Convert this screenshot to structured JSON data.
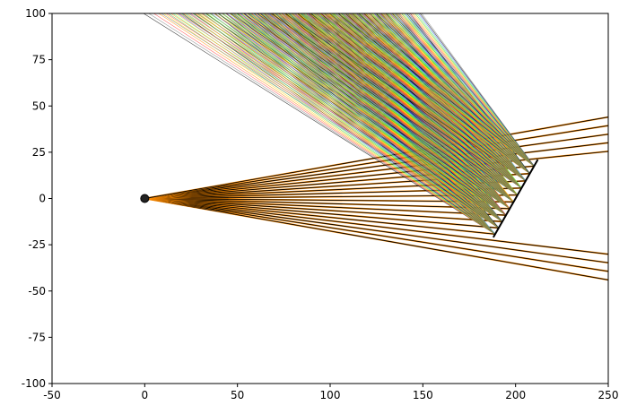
{
  "chart_data": {
    "type": "line",
    "title": "",
    "xlabel": "",
    "ylabel": "",
    "xlim": [
      -50,
      250
    ],
    "ylim": [
      -100,
      100
    ],
    "xticks": [
      -50,
      0,
      50,
      100,
      150,
      200,
      250
    ],
    "yticks": [
      -100,
      -75,
      -50,
      -25,
      0,
      25,
      50,
      75,
      100
    ],
    "grid": false,
    "source": {
      "x": 0,
      "y": 0
    },
    "surface": {
      "start": [
        188,
        -21
      ],
      "end": [
        212,
        21
      ]
    },
    "incident_rays": {
      "count": 20,
      "slope_range": [
        -0.176,
        0.176
      ],
      "color": "#000000",
      "underlay_color": "#ff8c00"
    },
    "reflected_rays": {
      "angle_range_deg": [
        146,
        128
      ],
      "colors": [
        "#000000",
        "#808080",
        "#ff4040",
        "#ff8c00",
        "#ffd700",
        "#40c040",
        "#60ff60",
        "#4060ff"
      ]
    }
  }
}
